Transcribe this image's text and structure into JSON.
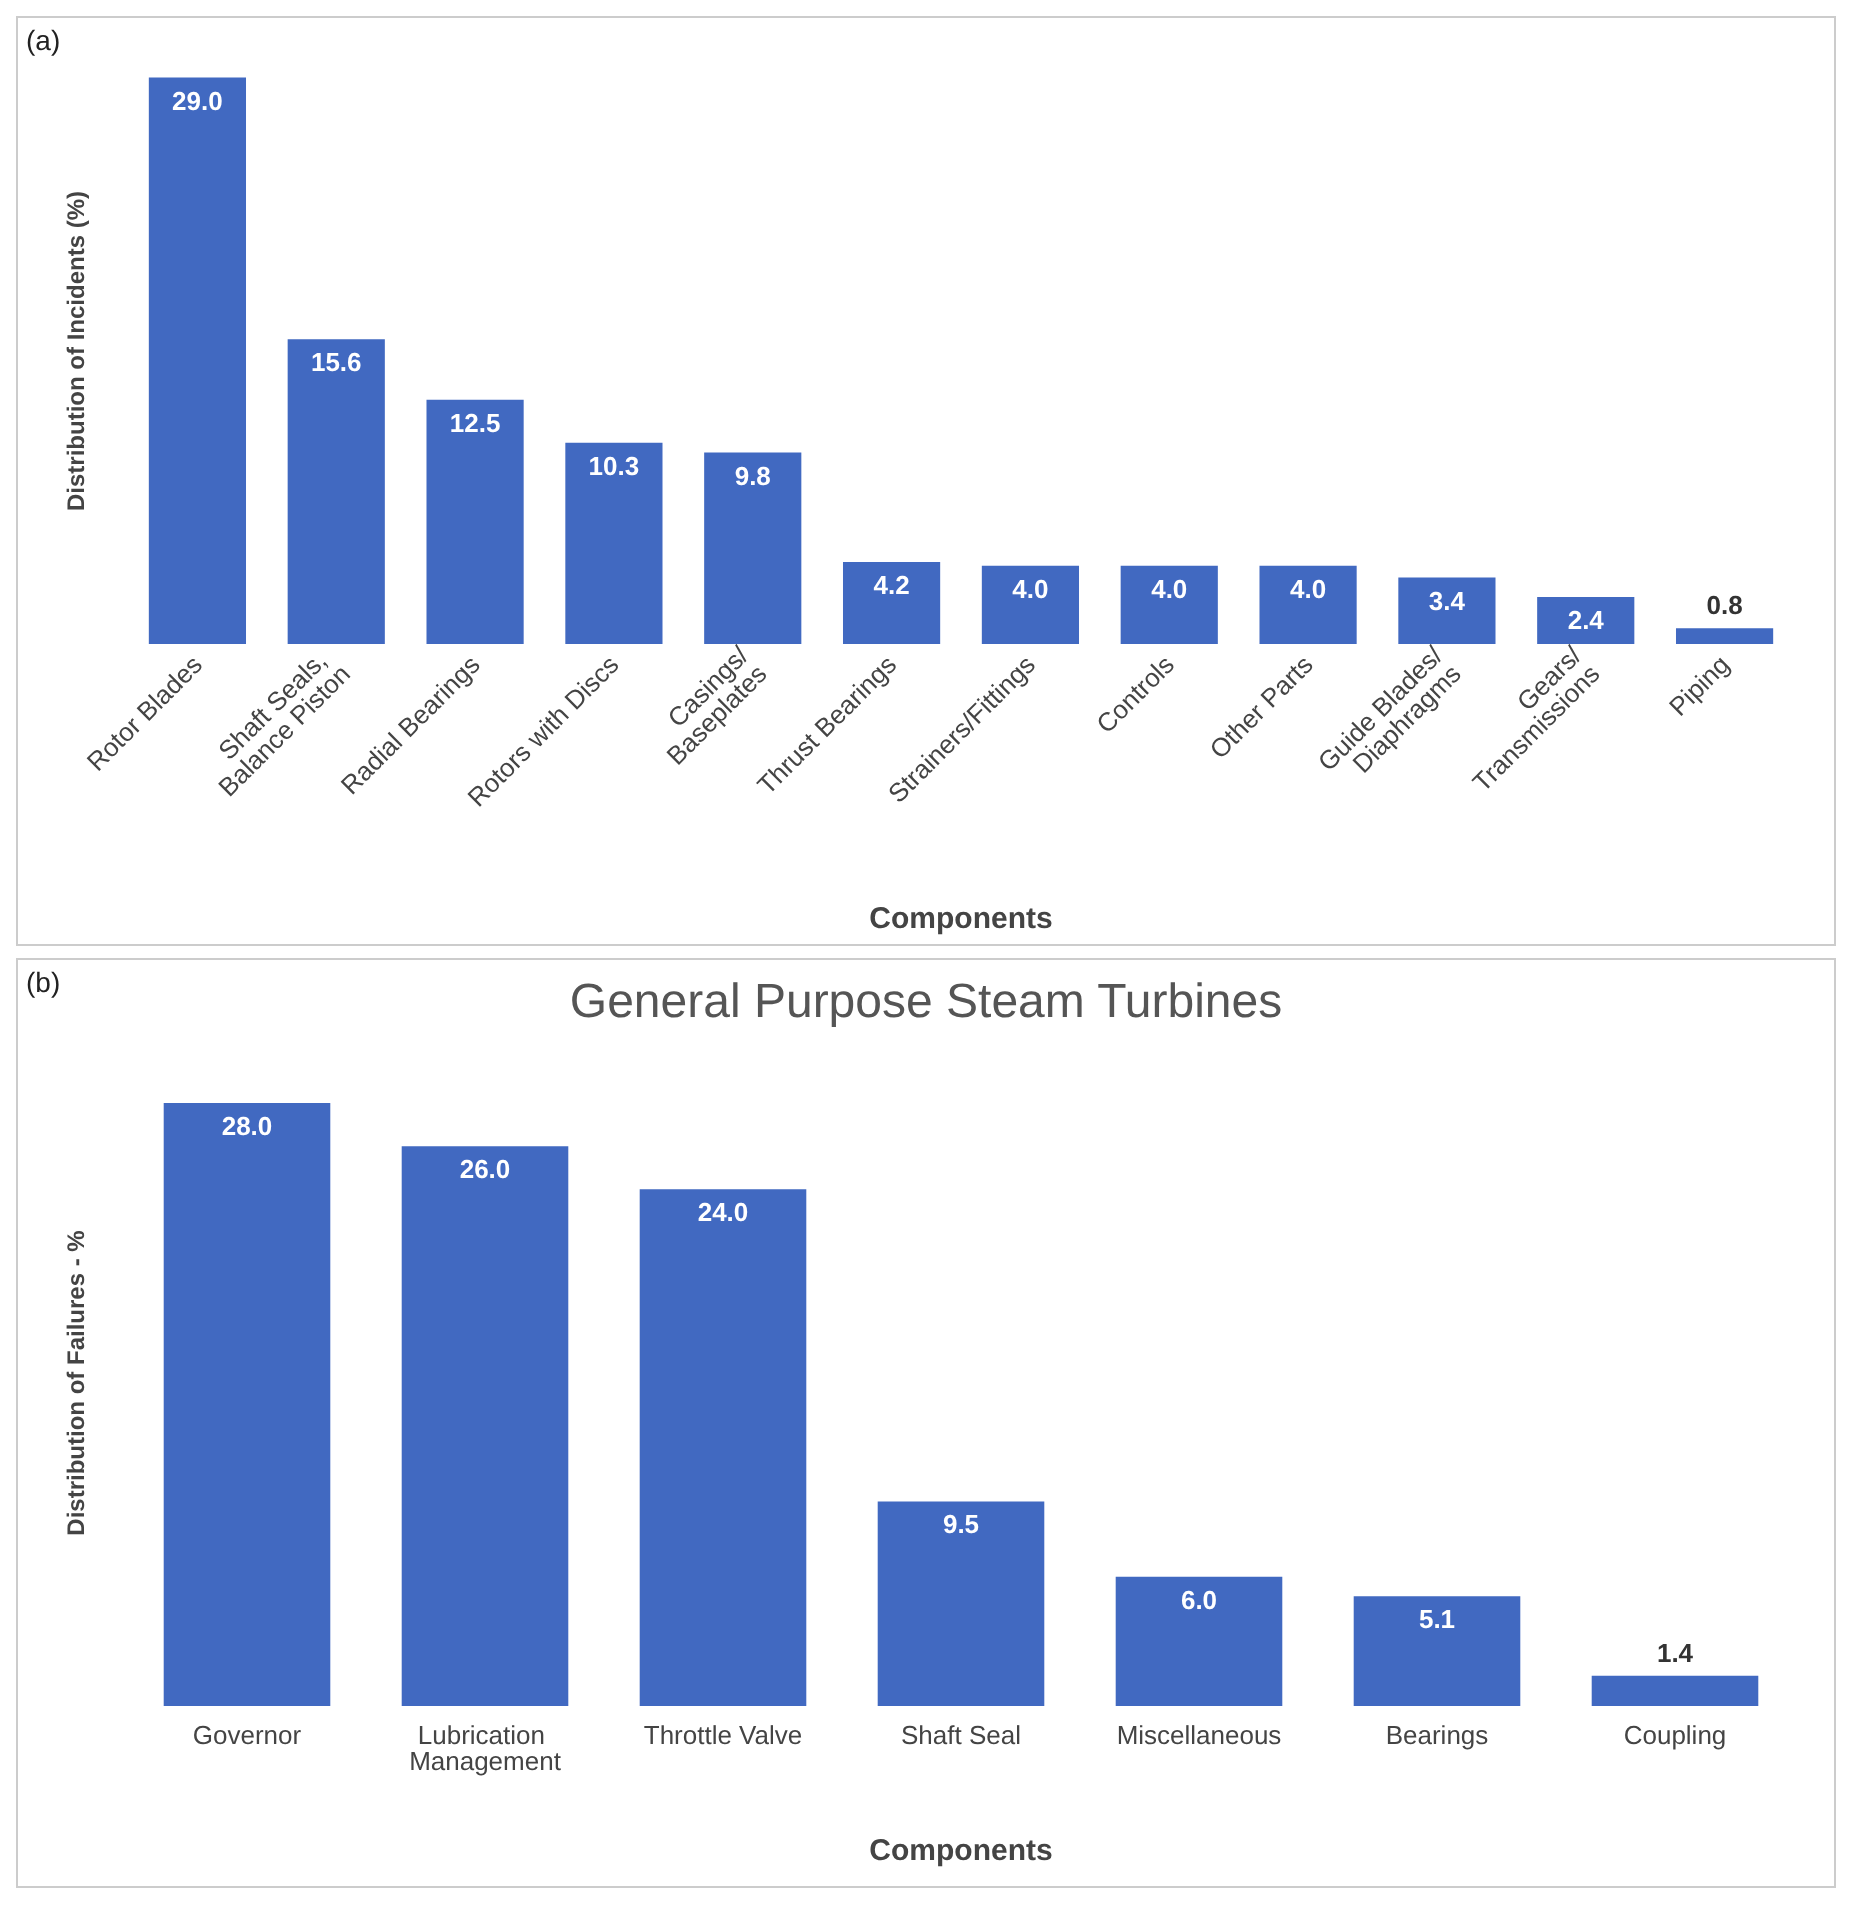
{
  "chart_data": [
    {
      "type": "bar",
      "annotations": [
        "(a)"
      ],
      "xlabel": "Components",
      "ylabel": "Distribution of Incidents (%)",
      "categories": [
        "Rotor Blades",
        "Shaft Seals, Balance Piston",
        "Radial Bearings",
        "Rotors with Discs",
        "Casings/Baseplates",
        "Thrust Bearings",
        "Strainers/Fittings",
        "Controls",
        "Other Parts",
        "Guide Blades/Diaphragms",
        "Gears/Transmissions",
        "Piping"
      ],
      "values": [
        29.0,
        15.6,
        12.5,
        10.3,
        9.8,
        4.2,
        4.0,
        4.0,
        4.0,
        3.4,
        2.4,
        0.8
      ],
      "value_labels": [
        "29.0",
        "15.6",
        "12.5",
        "10.3",
        "9.8",
        "4.2",
        "4.0",
        "4.0",
        "4.0",
        "3.4",
        "2.4",
        "0.8"
      ],
      "color": "#4169c1",
      "tick_labels": "x",
      "grid": false
    },
    {
      "type": "bar",
      "annotations": [
        "(b)"
      ],
      "title": "General Purpose Steam Turbines",
      "xlabel": "Components",
      "ylabel": "Distribution of Failures - %",
      "categories": [
        "Governor",
        "Lubrication Management",
        "Throttle Valve",
        "Shaft Seal",
        "Miscellaneous",
        "Bearings",
        "Coupling"
      ],
      "values": [
        28.0,
        26.0,
        24.0,
        9.5,
        6.0,
        5.1,
        1.4
      ],
      "value_labels": [
        "28.0",
        "26.0",
        "24.0",
        "9.5",
        "6.0",
        "5.1",
        "1.4"
      ],
      "color": "#4169c1",
      "tick_labels": "x",
      "grid": false
    }
  ]
}
